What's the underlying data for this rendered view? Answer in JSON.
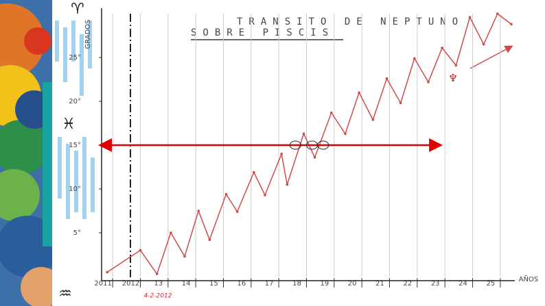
{
  "chart_data": {
    "type": "line",
    "title": "TRANSITO DE NEPTUNO",
    "subtitle": "SOBRE PISCIS",
    "y_label": "GRADOS",
    "x_label": "AÑOS",
    "symbols": {
      "top": "♈",
      "middle": "♓",
      "bottom": "♒",
      "planet": "♆"
    },
    "annotation": "4-2-2012",
    "xlim": [
      2010.6,
      2025.4
    ],
    "ylim": [
      0,
      30
    ],
    "xticks": [
      {
        "value": 2011,
        "label": "2011"
      },
      2012,
      {
        "value": 2013,
        "label": "13"
      },
      {
        "value": 2014,
        "label": "14"
      },
      {
        "value": 2015,
        "label": "15"
      },
      {
        "value": 2016,
        "label": "16"
      },
      {
        "value": 2017,
        "label": "17"
      },
      {
        "value": 2018,
        "label": "18"
      },
      {
        "value": 2019,
        "label": "19"
      },
      {
        "value": 2020,
        "label": "20"
      },
      {
        "value": 2021,
        "label": "21"
      },
      {
        "value": 2022,
        "label": "22"
      },
      {
        "value": 2023,
        "label": "23"
      },
      {
        "value": 2024,
        "label": "24"
      },
      {
        "value": 2025,
        "label": "25"
      }
    ],
    "yticks": [
      {
        "value": 5,
        "label": "5°"
      },
      {
        "value": 10,
        "label": "10°"
      },
      {
        "value": 15,
        "label": "15°"
      },
      {
        "value": 20,
        "label": "20°"
      },
      {
        "value": 25,
        "label": "25°"
      }
    ],
    "grid": true,
    "series": [
      {
        "color": "#d04a4a",
        "x": [
          2010.8,
          2012.0,
          2012.6,
          2013.1,
          2013.6,
          2014.1,
          2014.5,
          2015.1,
          2015.5,
          2016.1,
          2016.5,
          2017.1,
          2017.3,
          2017.9,
          2018.3,
          2018.9,
          2019.4,
          2019.9,
          2020.4,
          2020.9,
          2021.4,
          2021.9,
          2022.4,
          2022.9,
          2023.4,
          2023.9,
          2024.4,
          2024.9,
          2025.4
        ],
        "values": [
          0.5,
          3.0,
          0.3,
          5.0,
          2.3,
          7.5,
          4.2,
          9.4,
          7.4,
          11.9,
          9.3,
          14.0,
          10.5,
          16.3,
          13.6,
          18.7,
          16.3,
          21.0,
          17.9,
          22.6,
          19.8,
          24.9,
          22.2,
          26.1,
          24.1,
          29.6,
          26.5,
          30.0,
          28.8
        ]
      }
    ],
    "reference_line": {
      "y": 15,
      "x_start": 2010.6,
      "x_end": 2022.8,
      "color": "#e00000"
    },
    "crossings": [
      2017.6,
      2018.2,
      2018.6
    ]
  }
}
